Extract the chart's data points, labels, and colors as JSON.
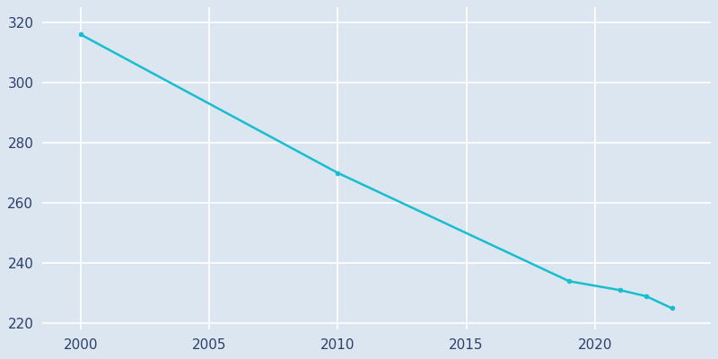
{
  "years": [
    2000,
    2010,
    2019,
    2021,
    2022,
    2023
  ],
  "population": [
    316,
    270,
    234,
    231,
    229,
    225
  ],
  "line_color": "#17becf",
  "marker_color": "#17becf",
  "background_color": "#dce6f0",
  "axes_background": "#dce6f0",
  "grid_color": "#ffffff",
  "tick_color": "#2d3f6c",
  "xlim": [
    1998.5,
    2024.5
  ],
  "ylim": [
    218,
    325
  ],
  "yticks": [
    220,
    240,
    260,
    280,
    300,
    320
  ],
  "xticks": [
    2000,
    2005,
    2010,
    2015,
    2020
  ],
  "figsize": [
    8,
    4
  ],
  "dpi": 100,
  "linewidth": 1.8,
  "markersize": 4
}
